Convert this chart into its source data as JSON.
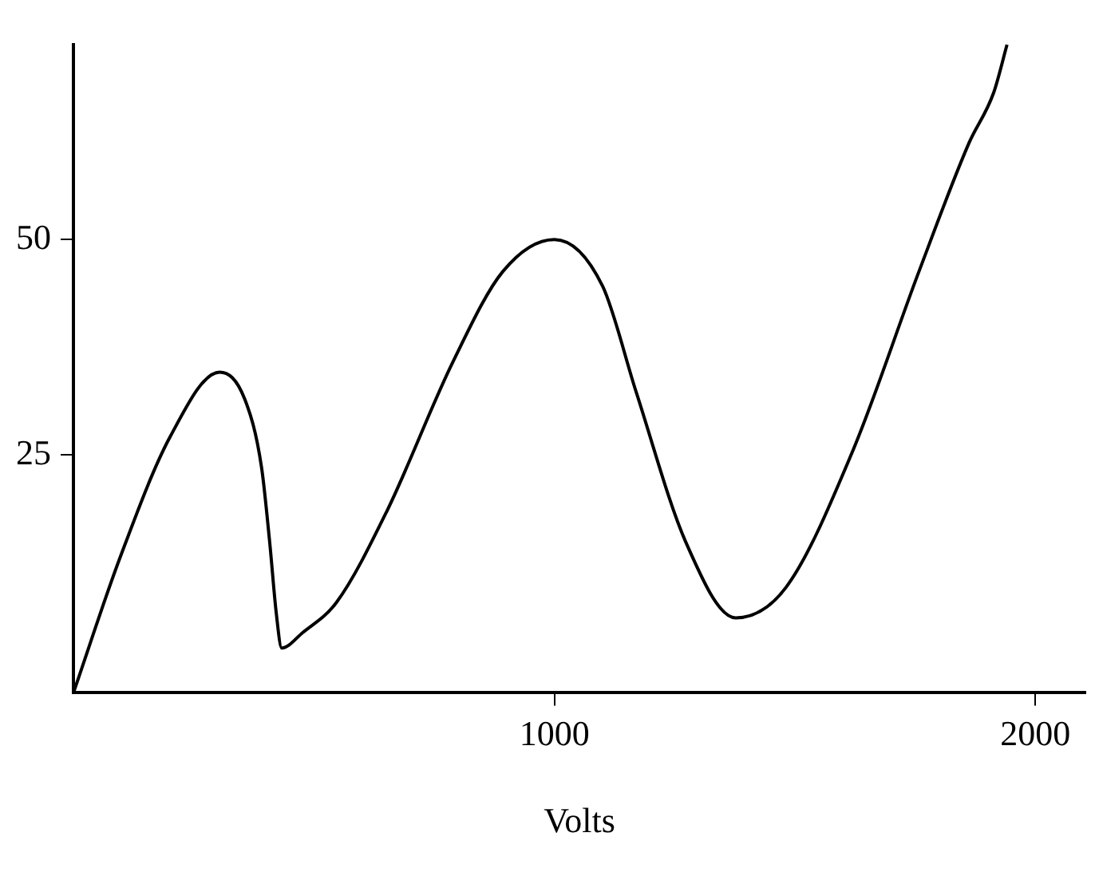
{
  "chart_data": {
    "type": "line",
    "xlabel": "Volts",
    "x": [
      0,
      97,
      201,
      304,
      356,
      391,
      408,
      422,
      433,
      477,
      547,
      651,
      789,
      893,
      1000,
      1100,
      1170,
      1273,
      1377,
      1481,
      1619,
      1758,
      1862,
      1913,
      1941
    ],
    "series": [
      {
        "color": "#000000",
        "values": [
          -2.6,
          13.1,
          27.1,
          34.6,
          31.5,
          23.6,
          14.9,
          6.5,
          2.6,
          4.4,
          7.9,
          18.4,
          35.8,
          46.3,
          50,
          44.6,
          32.3,
          14.9,
          6.1,
          9.6,
          25.3,
          46.3,
          61.2,
          67,
          72.6
        ]
      }
    ],
    "xlim": [
      0,
      2104
    ],
    "ylim": [
      -2.6,
      72.6
    ],
    "xticks": [
      1000,
      2000
    ],
    "yticks": [
      25,
      50
    ],
    "grid": false,
    "legend": false,
    "marker": "none",
    "line_style": "solid"
  }
}
